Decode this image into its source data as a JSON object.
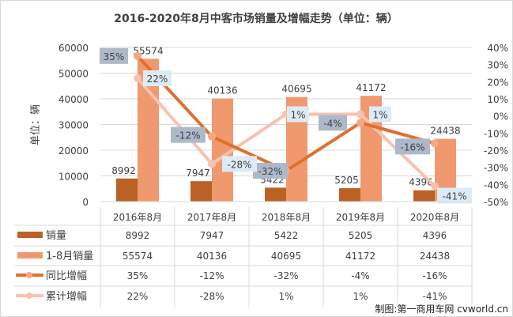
{
  "chart_data": {
    "type": "bar+line",
    "title": "2016-2020年8月中客市场销量及增幅走势（单位：辆）",
    "ylabel": "单位：辆",
    "categories": [
      "2016年8月",
      "2017年8月",
      "2018年8月",
      "2019年8月",
      "2020年8月"
    ],
    "ylim": [
      0,
      60000
    ],
    "yticks": [
      0,
      10000,
      20000,
      30000,
      40000,
      50000,
      60000
    ],
    "y2lim": [
      -50,
      40
    ],
    "y2ticks": [
      "40%",
      "30%",
      "20%",
      "10%",
      "0%",
      "-10%",
      "-20%",
      "-30%",
      "-40%",
      "-50%"
    ],
    "grid": true,
    "legend": "data-table-bottom",
    "series": [
      {
        "name": "销量",
        "type": "bar",
        "axis": "left",
        "color": "#BB6125",
        "values": [
          8992,
          7947,
          5422,
          5205,
          4396
        ]
      },
      {
        "name": "1-8月销量",
        "type": "bar",
        "axis": "left",
        "color": "#F0996F",
        "values": [
          55574,
          40136,
          40695,
          41172,
          24438
        ]
      },
      {
        "name": "同比增幅",
        "type": "line",
        "axis": "right",
        "color": "#E0702D",
        "marker": "#F4A886",
        "label_bg": "#ADB9CA",
        "values": [
          35,
          -12,
          -32,
          -4,
          -16
        ],
        "labels": [
          "35%",
          "-12%",
          "-32%",
          "-4%",
          "-16%"
        ]
      },
      {
        "name": "累计增幅",
        "type": "line",
        "axis": "right",
        "color": "#F8C2AE",
        "marker": "#F8C2AE",
        "label_bg": "#DDEBF7",
        "values": [
          22,
          -28,
          1,
          1,
          -41
        ],
        "labels": [
          "22%",
          "-28%",
          "1%",
          "1%",
          "-41%"
        ]
      }
    ]
  },
  "credit": "制图:第一商用车网 cvworld.cn"
}
